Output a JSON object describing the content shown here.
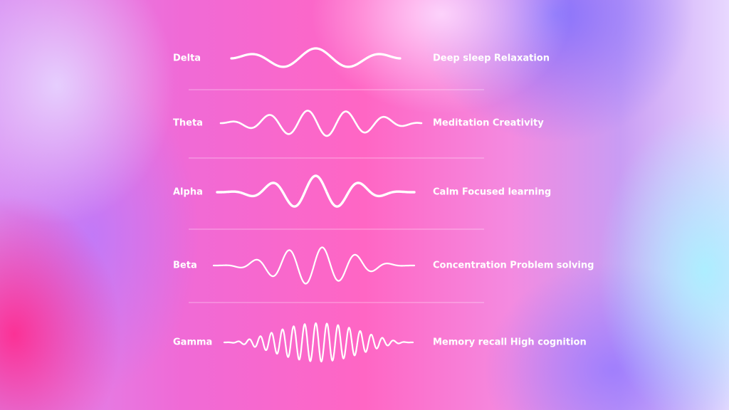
{
  "rows": [
    {
      "name": "Delta",
      "description": "Deep sleep Relaxation"
    },
    {
      "name": "Theta",
      "description": "Meditation Creativity"
    },
    {
      "name": "Alpha",
      "description": "Calm Focused learning"
    },
    {
      "name": "Beta",
      "description": "Concentration Problem solving"
    },
    {
      "name": "Gamma",
      "description": "Memory recall High cognition"
    }
  ]
}
